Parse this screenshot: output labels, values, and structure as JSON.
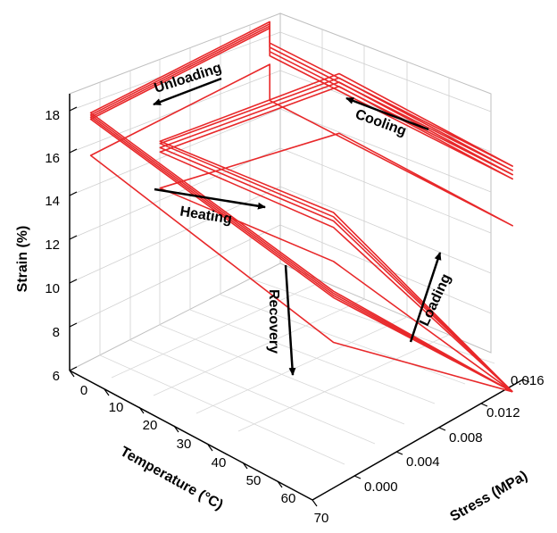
{
  "chart_data": {
    "type": "line",
    "projection": "3d",
    "x_axis": {
      "label": "Temperature (°C)",
      "range": [
        0,
        70
      ],
      "ticks": [
        "0",
        "10",
        "20",
        "30",
        "40",
        "50",
        "60",
        "70"
      ]
    },
    "y_axis": {
      "label": "Stress (MPa)",
      "range": [
        -0.004,
        0.016
      ],
      "ticks": [
        "0.000",
        "0.004",
        "0.008",
        "0.012",
        "0.016"
      ]
    },
    "z_axis": {
      "label": "Strain (%)",
      "range": [
        6,
        19
      ],
      "ticks": [
        "6",
        "8",
        "10",
        "12",
        "14",
        "16",
        "18"
      ]
    },
    "grid": true,
    "line_color": "#e8282a",
    "annotations": [
      "Unloading",
      "Cooling",
      "Heating",
      "Recovery",
      "Loading"
    ],
    "series": [
      {
        "x": [
          70,
          70,
          0,
          0,
          0,
          70,
          20,
          20,
          70,
          70,
          70
        ],
        "y": [
          -0.003,
          0.014,
          0.014,
          -0.003,
          -0.003,
          -0.003,
          -0.003,
          0.014,
          0.014,
          0.014,
          -0.003
        ],
        "z": [
          6.3,
          12.9,
          15.6,
          15.6,
          13.9,
          14.1,
          14.1,
          15.8,
          16.7,
          16.7,
          6.3
        ]
      },
      {
        "x": [
          70,
          70,
          0,
          0,
          0,
          70,
          20,
          20,
          70,
          70,
          70
        ],
        "y": [
          -0.003,
          0.014,
          0.014,
          -0.003,
          -0.003,
          -0.003,
          -0.003,
          0.014,
          0.014,
          0.014,
          -0.003
        ],
        "z": [
          6.3,
          15.0,
          17.3,
          17.3,
          16.0,
          16.3,
          16.3,
          17.5,
          18.3,
          18.3,
          6.3
        ]
      },
      {
        "x": [
          70,
          70,
          0,
          0,
          0,
          70,
          20,
          20,
          70,
          70,
          70
        ],
        "y": [
          -0.003,
          0.014,
          0.014,
          -0.003,
          -0.003,
          -0.003,
          -0.003,
          0.014,
          0.014,
          0.014,
          -0.003
        ],
        "z": [
          6.3,
          15.1,
          17.4,
          17.4,
          16.2,
          16.5,
          16.5,
          17.7,
          18.6,
          18.6,
          6.3
        ]
      },
      {
        "x": [
          70,
          70,
          0,
          0,
          0,
          70,
          20,
          20,
          70,
          70,
          70
        ],
        "y": [
          -0.003,
          0.014,
          0.014,
          -0.003,
          -0.003,
          -0.003,
          -0.003,
          0.014,
          0.014,
          0.014,
          -0.003
        ],
        "z": [
          6.3,
          15.2,
          17.5,
          17.5,
          16.4,
          16.7,
          16.7,
          17.9,
          18.8,
          18.8,
          6.3
        ]
      },
      {
        "x": [
          70,
          70,
          0,
          0,
          0,
          70,
          20,
          20,
          70,
          70,
          70
        ],
        "y": [
          -0.003,
          0.014,
          0.014,
          -0.003,
          -0.003,
          -0.003,
          -0.003,
          0.014,
          0.014,
          0.014,
          -0.003
        ],
        "z": [
          6.3,
          15.3,
          17.6,
          17.6,
          16.6,
          16.9,
          16.9,
          18.0,
          19.0,
          19.0,
          6.3
        ]
      }
    ]
  }
}
